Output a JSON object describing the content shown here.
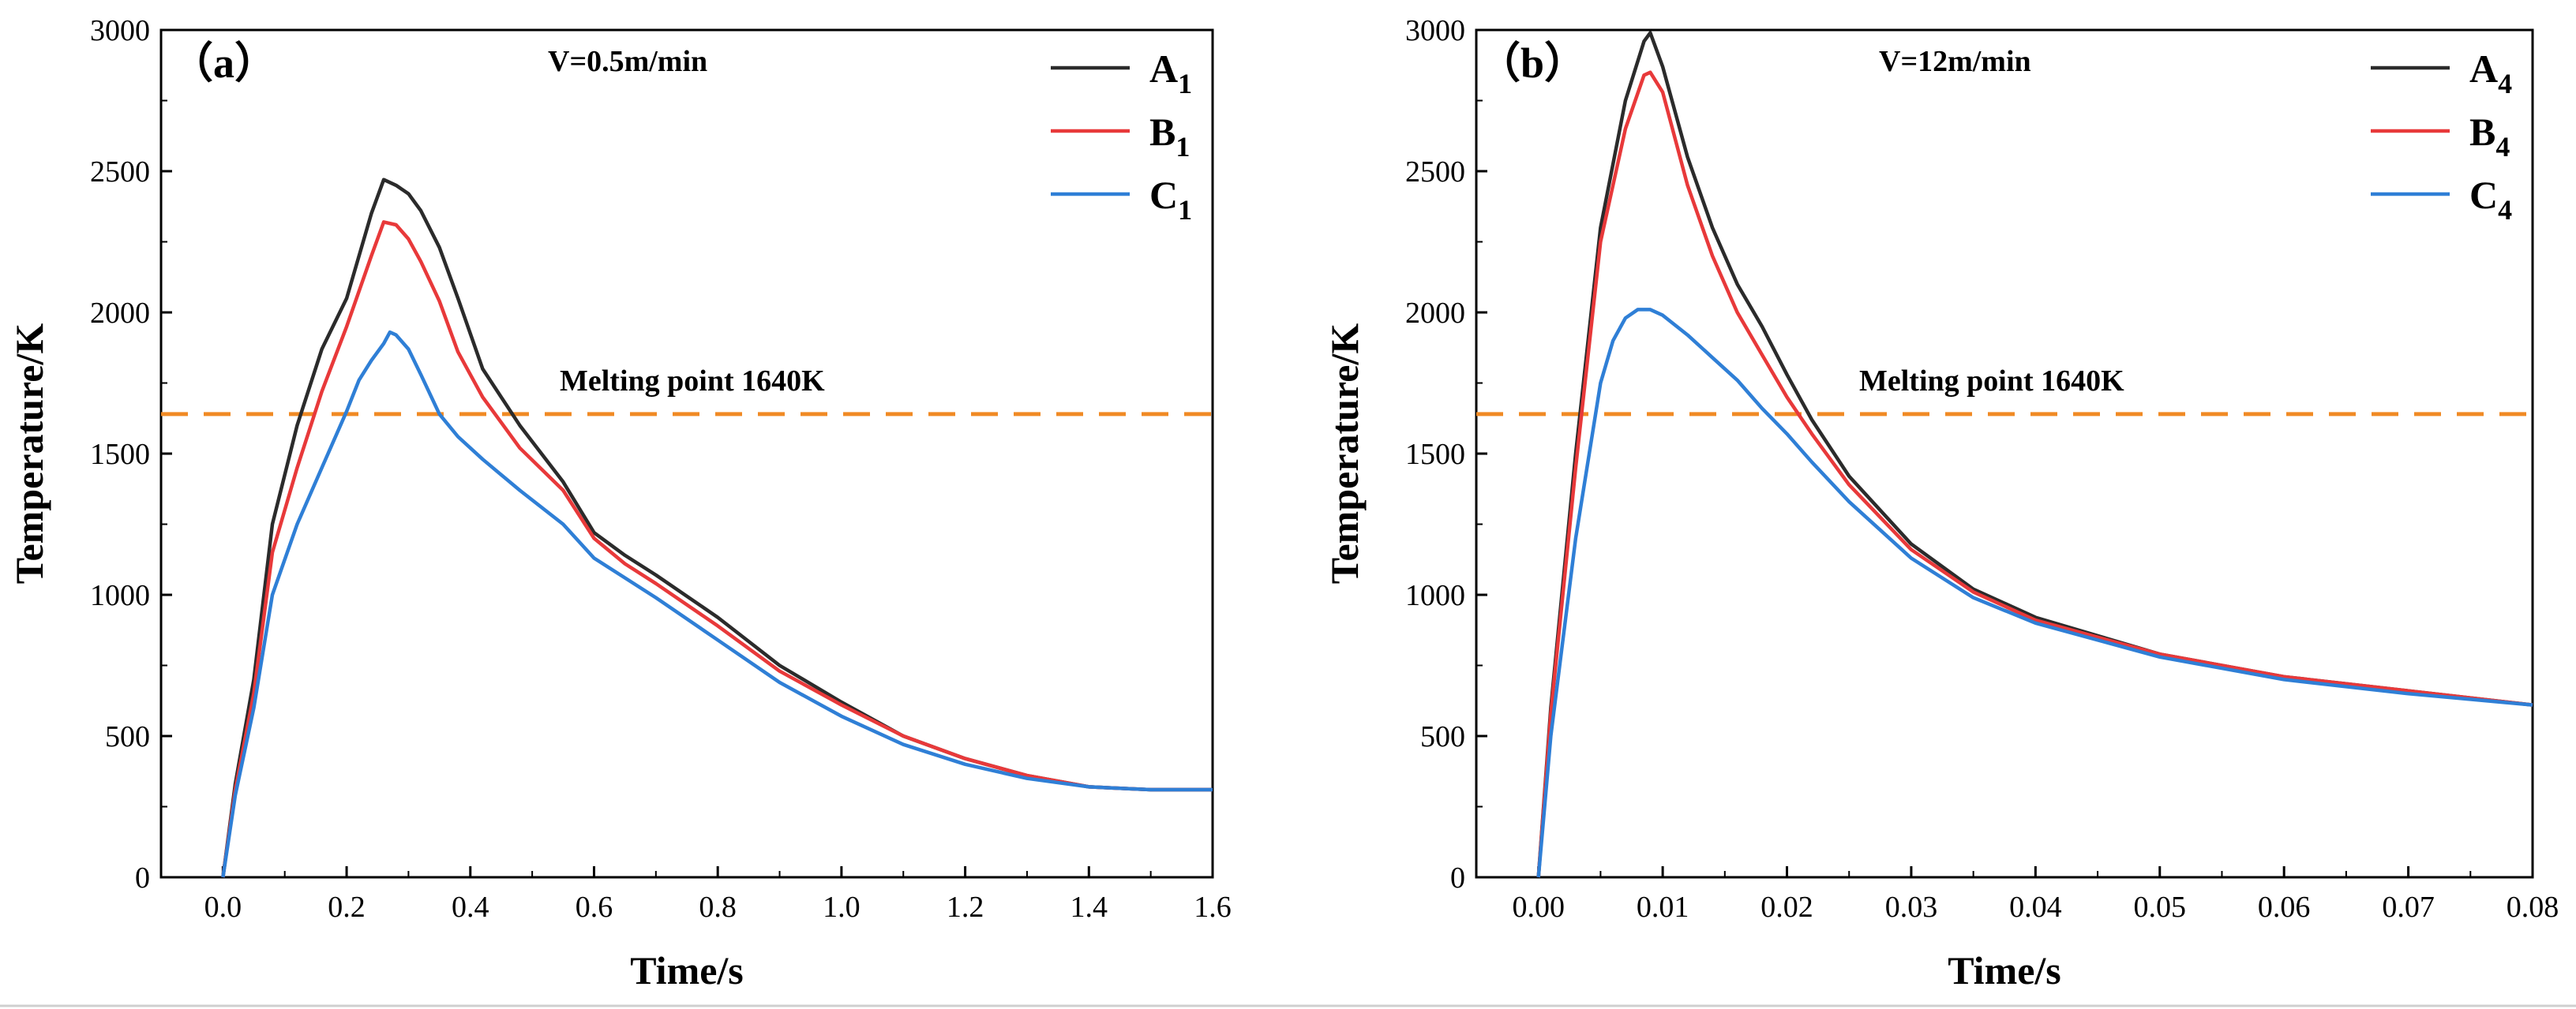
{
  "chart_data": [
    {
      "type": "line",
      "panel_label": "（a）",
      "annotation": "V=0.5m/min",
      "xlabel": "Time/s",
      "ylabel": "Temperature/K",
      "xlim": [
        -0.1,
        1.6
      ],
      "ylim": [
        0,
        3000
      ],
      "xticks": [
        "0.0",
        "0.2",
        "0.4",
        "0.6",
        "0.8",
        "1.0",
        "1.2",
        "1.4",
        "1.6"
      ],
      "yticks": [
        "0",
        "500",
        "1000",
        "1500",
        "2000",
        "2500",
        "3000"
      ],
      "reference_line": {
        "y": 1640,
        "label": "Melting point 1640K",
        "color": "#f08a24"
      },
      "series": [
        {
          "name": "A",
          "subscript": "1",
          "color": "#2b2b2b",
          "x": [
            0,
            0.02,
            0.05,
            0.08,
            0.12,
            0.16,
            0.2,
            0.24,
            0.26,
            0.28,
            0.3,
            0.32,
            0.35,
            0.38,
            0.42,
            0.48,
            0.55,
            0.6,
            0.65,
            0.7,
            0.8,
            0.9,
            1.0,
            1.1,
            1.2,
            1.3,
            1.4,
            1.5,
            1.6
          ],
          "values": [
            0,
            330,
            700,
            1250,
            1600,
            1870,
            2050,
            2350,
            2470,
            2450,
            2420,
            2360,
            2230,
            2050,
            1800,
            1600,
            1400,
            1220,
            1140,
            1070,
            920,
            750,
            620,
            500,
            420,
            360,
            320,
            310,
            310
          ]
        },
        {
          "name": "B",
          "subscript": "1",
          "color": "#e8393a",
          "x": [
            0,
            0.02,
            0.05,
            0.08,
            0.12,
            0.16,
            0.2,
            0.24,
            0.26,
            0.28,
            0.3,
            0.32,
            0.35,
            0.38,
            0.42,
            0.48,
            0.55,
            0.6,
            0.65,
            0.7,
            0.8,
            0.9,
            1.0,
            1.1,
            1.2,
            1.3,
            1.4,
            1.5,
            1.6
          ],
          "values": [
            0,
            310,
            650,
            1150,
            1450,
            1720,
            1950,
            2200,
            2320,
            2310,
            2260,
            2180,
            2040,
            1860,
            1700,
            1520,
            1370,
            1200,
            1110,
            1040,
            890,
            730,
            610,
            500,
            420,
            360,
            320,
            310,
            310
          ]
        },
        {
          "name": "C",
          "subscript": "1",
          "color": "#2f7fd6",
          "x": [
            0,
            0.02,
            0.05,
            0.08,
            0.12,
            0.16,
            0.2,
            0.22,
            0.24,
            0.26,
            0.27,
            0.28,
            0.3,
            0.32,
            0.35,
            0.38,
            0.42,
            0.48,
            0.55,
            0.6,
            0.65,
            0.7,
            0.8,
            0.9,
            1.0,
            1.1,
            1.2,
            1.3,
            1.4,
            1.5,
            1.6
          ],
          "values": [
            0,
            290,
            600,
            1000,
            1250,
            1450,
            1650,
            1760,
            1830,
            1890,
            1930,
            1920,
            1870,
            1780,
            1640,
            1560,
            1480,
            1370,
            1250,
            1130,
            1060,
            990,
            840,
            690,
            570,
            470,
            400,
            350,
            320,
            310,
            310
          ]
        }
      ]
    },
    {
      "type": "line",
      "panel_label": "（b）",
      "annotation": "V=12m/min",
      "xlabel": "Time/s",
      "ylabel": "Temperature/K",
      "xlim": [
        -0.005,
        0.08
      ],
      "ylim": [
        0,
        3000
      ],
      "xticks": [
        "0.00",
        "0.01",
        "0.02",
        "0.03",
        "0.04",
        "0.05",
        "0.06",
        "0.07",
        "0.08"
      ],
      "yticks": [
        "0",
        "500",
        "1000",
        "1500",
        "2000",
        "2500",
        "3000"
      ],
      "reference_line": {
        "y": 1640,
        "label": "Melting point 1640K",
        "color": "#f08a24"
      },
      "series": [
        {
          "name": "A",
          "subscript": "4",
          "color": "#2b2b2b",
          "x": [
            0,
            0.001,
            0.003,
            0.005,
            0.007,
            0.0085,
            0.009,
            0.01,
            0.012,
            0.014,
            0.016,
            0.018,
            0.02,
            0.022,
            0.025,
            0.03,
            0.035,
            0.04,
            0.05,
            0.06,
            0.07,
            0.08
          ],
          "values": [
            0,
            600,
            1500,
            2300,
            2750,
            2960,
            2990,
            2870,
            2550,
            2300,
            2100,
            1950,
            1780,
            1620,
            1420,
            1180,
            1020,
            920,
            790,
            710,
            660,
            610
          ]
        },
        {
          "name": "B",
          "subscript": "4",
          "color": "#e8393a",
          "x": [
            0,
            0.001,
            0.003,
            0.005,
            0.007,
            0.0085,
            0.009,
            0.01,
            0.012,
            0.014,
            0.016,
            0.018,
            0.02,
            0.022,
            0.025,
            0.03,
            0.035,
            0.04,
            0.05,
            0.06,
            0.07,
            0.08
          ],
          "values": [
            0,
            580,
            1450,
            2250,
            2650,
            2840,
            2850,
            2780,
            2450,
            2200,
            2000,
            1850,
            1700,
            1570,
            1390,
            1160,
            1010,
            910,
            790,
            710,
            660,
            610
          ]
        },
        {
          "name": "C",
          "subscript": "4",
          "color": "#2f7fd6",
          "x": [
            0,
            0.001,
            0.003,
            0.005,
            0.006,
            0.007,
            0.008,
            0.009,
            0.01,
            0.012,
            0.014,
            0.016,
            0.018,
            0.02,
            0.022,
            0.025,
            0.03,
            0.035,
            0.04,
            0.05,
            0.06,
            0.07,
            0.08
          ],
          "values": [
            0,
            500,
            1200,
            1750,
            1900,
            1980,
            2010,
            2010,
            1990,
            1920,
            1840,
            1760,
            1660,
            1570,
            1470,
            1330,
            1130,
            990,
            900,
            780,
            700,
            650,
            610
          ]
        }
      ]
    }
  ]
}
